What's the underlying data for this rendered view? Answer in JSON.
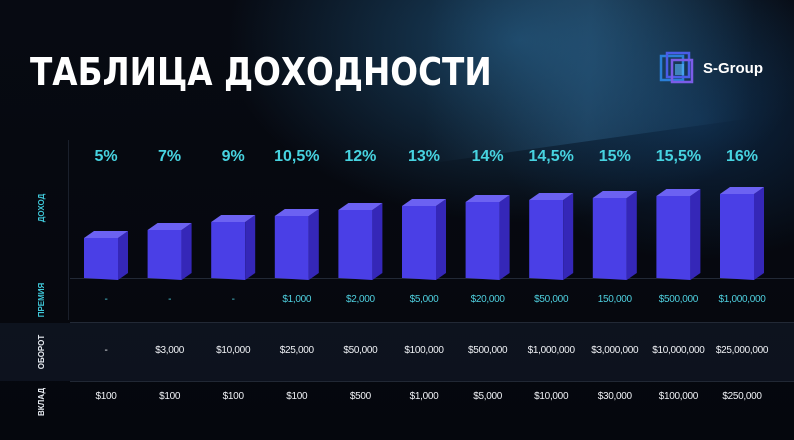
{
  "page": {
    "title": "ТАБЛИЦА ДОХОДНОСТИ",
    "brand": "S-Group",
    "colors": {
      "bar_front": "#4a3fe6",
      "bar_side": "#3527b8",
      "bar_top": "#6c62f2",
      "accent": "#47d3e0"
    }
  },
  "chart_data": {
    "type": "bar",
    "title": "ТАБЛИЦА ДОХОДНОСТИ",
    "categories": [
      "5%",
      "7%",
      "9%",
      "10,5%",
      "12%",
      "13%",
      "14%",
      "14,5%",
      "15%",
      "15,5%",
      "16%"
    ],
    "series": [
      {
        "name": "ДОХОД",
        "values": [
          5,
          7,
          9,
          10.5,
          12,
          13,
          14,
          14.5,
          15,
          15.5,
          16
        ]
      }
    ],
    "row_labels": {
      "income": "ДОХОД",
      "bonus": "ПРЕМИЯ",
      "turnover": "ОБОРОТ",
      "deposit": "ВКЛАД"
    },
    "bonus": [
      "-",
      "-",
      "-",
      "$1,000",
      "$2,000",
      "$5,000",
      "$20,000",
      "$50,000",
      "150,000",
      "$500,000",
      "$1,000,000"
    ],
    "turnover": [
      "-",
      "$3,000",
      "$10,000",
      "$25,000",
      "$50,000",
      "$100,000",
      "$500,000",
      "$1,000,000",
      "$3,000,000",
      "$10,000,000",
      "$25,000,000"
    ],
    "deposit": [
      "$100",
      "$100",
      "$100",
      "$100",
      "$500",
      "$1,000",
      "$5,000",
      "$10,000",
      "$30,000",
      "$100,000",
      "$250,000"
    ],
    "ylim": [
      0,
      16
    ],
    "grid": false,
    "legend": "none"
  }
}
